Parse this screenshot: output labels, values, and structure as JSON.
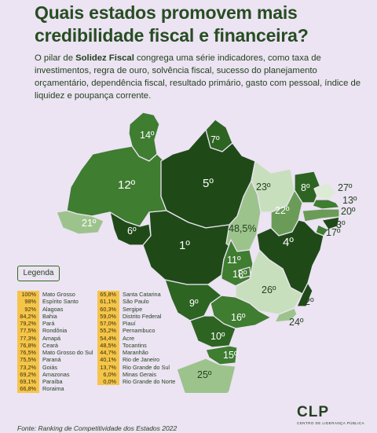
{
  "header": {
    "title": "Quais estados promovem mais credibilidade fiscal e financeira?",
    "intro_bold": "Solidez Fiscal",
    "intro_before": "O pilar de ",
    "intro_after": " congrega uma série indicadores, como taxa de investimentos, regra de ouro, solvência fiscal, sucesso do planejamento orçamentário, dependência fiscal, resultado primário, gasto com pessoal, índice de liquidez e poupança corrente."
  },
  "map": {
    "labels": [
      "14º",
      "7º",
      "12º",
      "5º",
      "23º",
      "8º",
      "27º",
      "13º",
      "20º",
      "21º",
      "6º",
      "1º",
      "48,5%",
      "22º",
      "3º",
      "17º",
      "4º",
      "11º",
      "18º",
      "26º",
      "9º",
      "2º",
      "16º",
      "24º",
      "10º",
      "15º",
      "25º"
    ],
    "colors": {
      "darkest": "#1f4a18",
      "dark": "#2d6422",
      "mid": "#3f7d31",
      "light": "#6a9c57",
      "lighter": "#9dc38d",
      "pale": "#c8dfbd",
      "palest": "#dcebd4"
    }
  },
  "legend": {
    "title": "Legenda",
    "column1": [
      {
        "value": "100%",
        "state": "Mato Grosso"
      },
      {
        "value": "98%",
        "state": "Espírito Santo"
      },
      {
        "value": "92%",
        "state": "Alagoas"
      },
      {
        "value": "84,2%",
        "state": "Bahia"
      },
      {
        "value": "79,2%",
        "state": "Pará"
      },
      {
        "value": "77,5%",
        "state": "Rondônia"
      },
      {
        "value": "77,3%",
        "state": "Amapá"
      },
      {
        "value": "76,8%",
        "state": "Ceará"
      },
      {
        "value": "76,5%",
        "state": "Mato Grosso do Sul"
      },
      {
        "value": "75,5%",
        "state": "Paraná"
      },
      {
        "value": "73,2%",
        "state": "Goiás"
      },
      {
        "value": "69,2%",
        "state": "Amazonas"
      },
      {
        "value": "69,1%",
        "state": "Paraíba"
      },
      {
        "value": "66,8%",
        "state": "Roraima"
      }
    ],
    "column2": [
      {
        "value": "65,8%",
        "state": "Santa Catarina"
      },
      {
        "value": "61,1%",
        "state": "São Paulo"
      },
      {
        "value": "60,3%",
        "state": "Sergipe"
      },
      {
        "value": "59,0%",
        "state": "Distrito Federal"
      },
      {
        "value": "57,0%",
        "state": "Piauí"
      },
      {
        "value": "55,2%",
        "state": "Pernambuco"
      },
      {
        "value": "54,4%",
        "state": "Acre"
      },
      {
        "value": "48,5%",
        "state": "Tocantins"
      },
      {
        "value": "44,7%",
        "state": "Maranhão"
      },
      {
        "value": "40,1%",
        "state": "Rio de Janeiro"
      },
      {
        "value": "13,7%",
        "state": "Rio Grande do Sul"
      },
      {
        "value": "6,0%",
        "state": "Minas Gerais"
      },
      {
        "value": "0,0%",
        "state": "Rio Grande do Norte"
      }
    ]
  },
  "footer": {
    "source": "Fonte: Ranking de Competitividade dos Estados 2022",
    "logo": "CLP",
    "logo_sub": "CENTRO DE LIDERANÇA PÚBLICA"
  }
}
